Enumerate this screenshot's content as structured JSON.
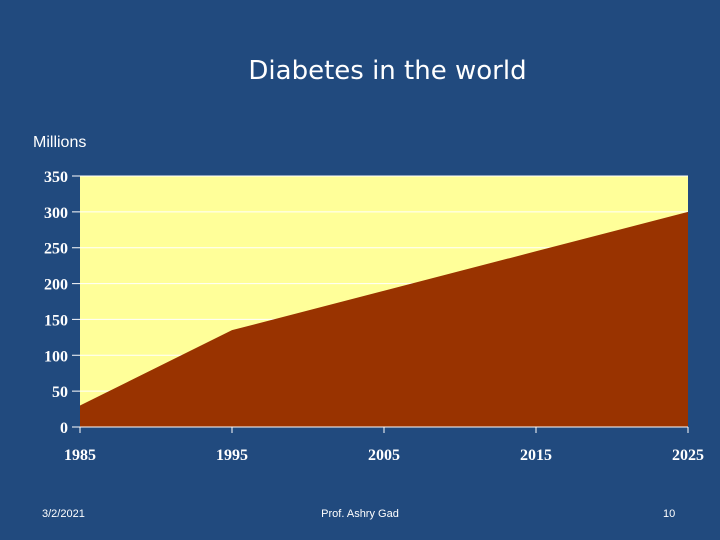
{
  "slide": {
    "title": "Diabetes in the world",
    "date": "3/2/2021",
    "author": "Prof. Ashry Gad",
    "page_number": "10"
  },
  "colors": {
    "background": "#214a7e",
    "plot_area": "#ffff99",
    "area_fill": "#993300",
    "gridline": "#ffffff"
  },
  "chart_data": {
    "type": "area",
    "title": "Diabetes in the world",
    "xlabel": "",
    "ylabel": "Millions",
    "x": [
      1985,
      1995,
      2005,
      2015,
      2025
    ],
    "series": [
      {
        "name": "Diabetes",
        "values": [
          30,
          135,
          190,
          245,
          300
        ]
      }
    ],
    "xlim": [
      1985,
      2025
    ],
    "ylim": [
      0,
      350
    ],
    "yticks": [
      0,
      50,
      100,
      150,
      200,
      250,
      300,
      350
    ],
    "xticks": [
      1985,
      1995,
      2005,
      2015,
      2025
    ],
    "grid": true,
    "legend": "none"
  }
}
